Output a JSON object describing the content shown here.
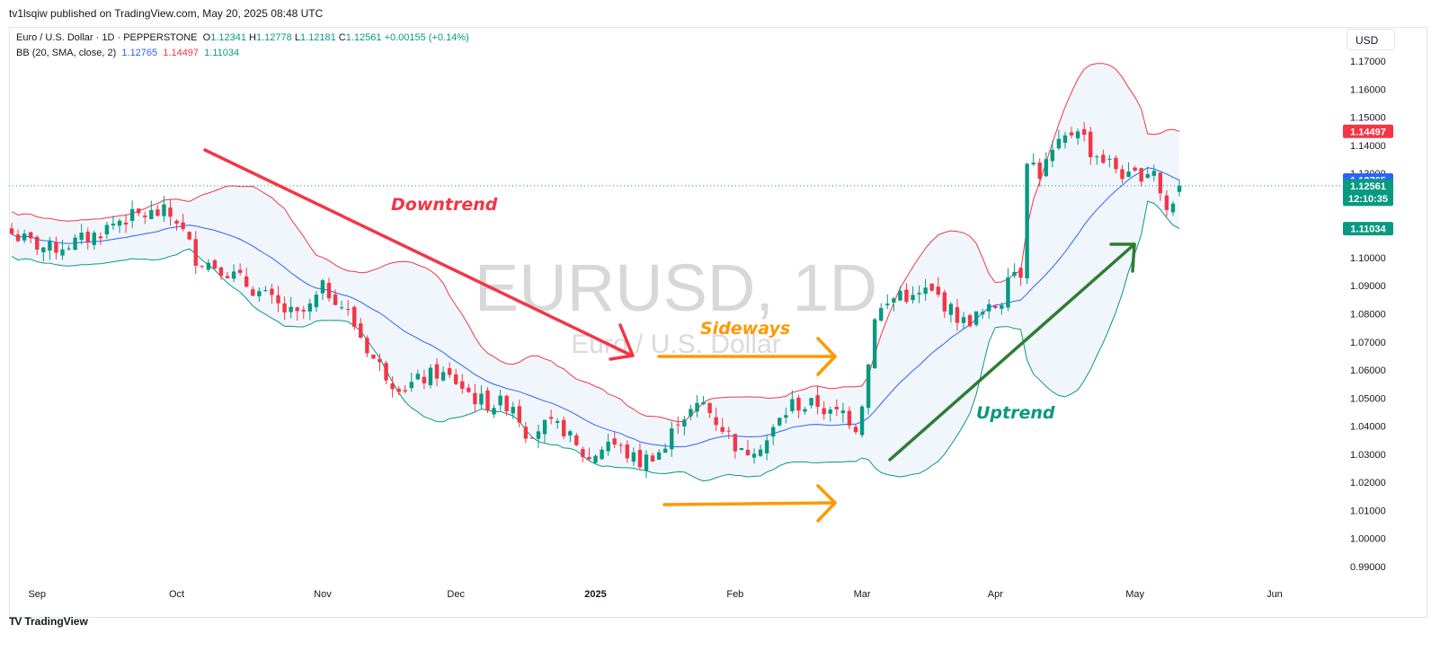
{
  "header": {
    "published": "tv1lsqiw published on TradingView.com, May 20, 2025 08:48 UTC"
  },
  "legend": {
    "symbol": "Euro / U.S. Dollar · 1D · PEPPERSTONE",
    "o_label": "O",
    "o": "1.12341",
    "h_label": "H",
    "h": "1.12778",
    "l_label": "L",
    "l": "1.12181",
    "c_label": "C",
    "c": "1.12561",
    "change": "+0.00155 (+0.14%)",
    "bb_label": "BB (20, SMA, close, 2)",
    "bb_basis": "1.12765",
    "bb_upper": "1.14497",
    "bb_lower": "1.11034"
  },
  "currency_button": "USD",
  "footer": {
    "brand": "TradingView",
    "logo": "TV"
  },
  "colors": {
    "up": "#089981",
    "down": "#f23645",
    "basis": "#2962ff",
    "upper": "#f23645",
    "lower": "#089981",
    "band_fill": "#f1f6fd",
    "downtrend": "#f23645",
    "sideways": "#ff9800",
    "uptrend": "#2e7d32"
  },
  "chart_data": {
    "type": "candlestick",
    "watermark_symbol": "EURUSD, 1D",
    "watermark_name": "Euro / U.S. Dollar",
    "ylim": [
      0.985,
      1.175
    ],
    "y_ticks": [
      "1.17000",
      "1.16000",
      "1.15000",
      "1.14000",
      "1.13000",
      "1.12000",
      "1.11000",
      "1.10000",
      "1.09000",
      "1.08000",
      "1.07000",
      "1.06000",
      "1.05000",
      "1.04000",
      "1.03000",
      "1.02000",
      "1.01000",
      "1.00000",
      "0.99000"
    ],
    "y_tick_values": [
      1.17,
      1.16,
      1.15,
      1.14,
      1.13,
      1.12,
      1.11,
      1.1,
      1.09,
      1.08,
      1.07,
      1.06,
      1.05,
      1.04,
      1.03,
      1.02,
      1.01,
      1.0,
      0.99
    ],
    "x_ticks": [
      {
        "label": "Sep",
        "day": 4
      },
      {
        "label": "Oct",
        "day": 26
      },
      {
        "label": "Nov",
        "day": 49
      },
      {
        "label": "Dec",
        "day": 70
      },
      {
        "label": "2025",
        "day": 92,
        "bold": true
      },
      {
        "label": "Feb",
        "day": 114
      },
      {
        "label": "Mar",
        "day": 134
      },
      {
        "label": "Apr",
        "day": 155
      },
      {
        "label": "May",
        "day": 177
      },
      {
        "label": "Jun",
        "day": 199
      }
    ],
    "total_bars": 185,
    "close_anchors": [
      [
        0,
        1.1085
      ],
      [
        3,
        1.1052
      ],
      [
        6,
        1.103
      ],
      [
        10,
        1.1055
      ],
      [
        13,
        1.108
      ],
      [
        17,
        1.1135
      ],
      [
        20,
        1.115
      ],
      [
        24,
        1.116
      ],
      [
        26,
        1.1135
      ],
      [
        29,
        1.1
      ],
      [
        33,
        1.0965
      ],
      [
        37,
        1.0905
      ],
      [
        40,
        1.086
      ],
      [
        43,
        1.081
      ],
      [
        45,
        1.079
      ],
      [
        47,
        1.082
      ],
      [
        49,
        1.089
      ],
      [
        51,
        1.086
      ],
      [
        53,
        1.08
      ],
      [
        55,
        1.072
      ],
      [
        57,
        1.064
      ],
      [
        60,
        1.056
      ],
      [
        62,
        1.054
      ],
      [
        64,
        1.056
      ],
      [
        67,
        1.059
      ],
      [
        70,
        1.056
      ],
      [
        73,
        1.05
      ],
      [
        75,
        1.048
      ],
      [
        77,
        1.048
      ],
      [
        79,
        1.048
      ],
      [
        81,
        1.038
      ],
      [
        84,
        1.04
      ],
      [
        87,
        1.039
      ],
      [
        89,
        1.032
      ],
      [
        91,
        1.028
      ],
      [
        94,
        1.035
      ],
      [
        97,
        1.03
      ],
      [
        99,
        1.027
      ],
      [
        101,
        1.03
      ],
      [
        103,
        1.032
      ],
      [
        105,
        1.043
      ],
      [
        107,
        1.045
      ],
      [
        109,
        1.048
      ],
      [
        111,
        1.042
      ],
      [
        113,
        1.037
      ],
      [
        115,
        1.03
      ],
      [
        117,
        1.033
      ],
      [
        119,
        1.035
      ],
      [
        121,
        1.042
      ],
      [
        123,
        1.048
      ],
      [
        125,
        1.047
      ],
      [
        127,
        1.048
      ],
      [
        129,
        1.044
      ],
      [
        131,
        1.045
      ],
      [
        133,
        1.04
      ],
      [
        134,
        1.049
      ],
      [
        135,
        1.062
      ],
      [
        136,
        1.08
      ],
      [
        138,
        1.083
      ],
      [
        140,
        1.088
      ],
      [
        142,
        1.085
      ],
      [
        144,
        1.088
      ],
      [
        146,
        1.086
      ],
      [
        148,
        1.081
      ],
      [
        150,
        1.077
      ],
      [
        152,
        1.079
      ],
      [
        154,
        1.081
      ],
      [
        156,
        1.085
      ],
      [
        157,
        1.096
      ],
      [
        159,
        1.095
      ],
      [
        160,
        1.136
      ],
      [
        162,
        1.13
      ],
      [
        164,
        1.137
      ],
      [
        166,
        1.142
      ],
      [
        168,
        1.147
      ],
      [
        170,
        1.138
      ],
      [
        172,
        1.135
      ],
      [
        174,
        1.132
      ],
      [
        176,
        1.128
      ],
      [
        178,
        1.13
      ],
      [
        180,
        1.132
      ],
      [
        181,
        1.123
      ],
      [
        182,
        1.117
      ],
      [
        183,
        1.119
      ],
      [
        184,
        1.1256
      ]
    ],
    "series": [
      {
        "name": "BB basis",
        "last": 1.12765
      },
      {
        "name": "BB upper",
        "last": 1.14497
      },
      {
        "name": "BB lower",
        "last": 1.11034
      }
    ],
    "price_tags": {
      "upper": "1.14497",
      "basis": "1.12765",
      "close": "1.12561",
      "countdown": "12:10:35",
      "lower": "1.11034"
    },
    "annotations": {
      "downtrend": "Downtrend",
      "sideways": "Sideways",
      "uptrend": "Uptrend"
    }
  }
}
